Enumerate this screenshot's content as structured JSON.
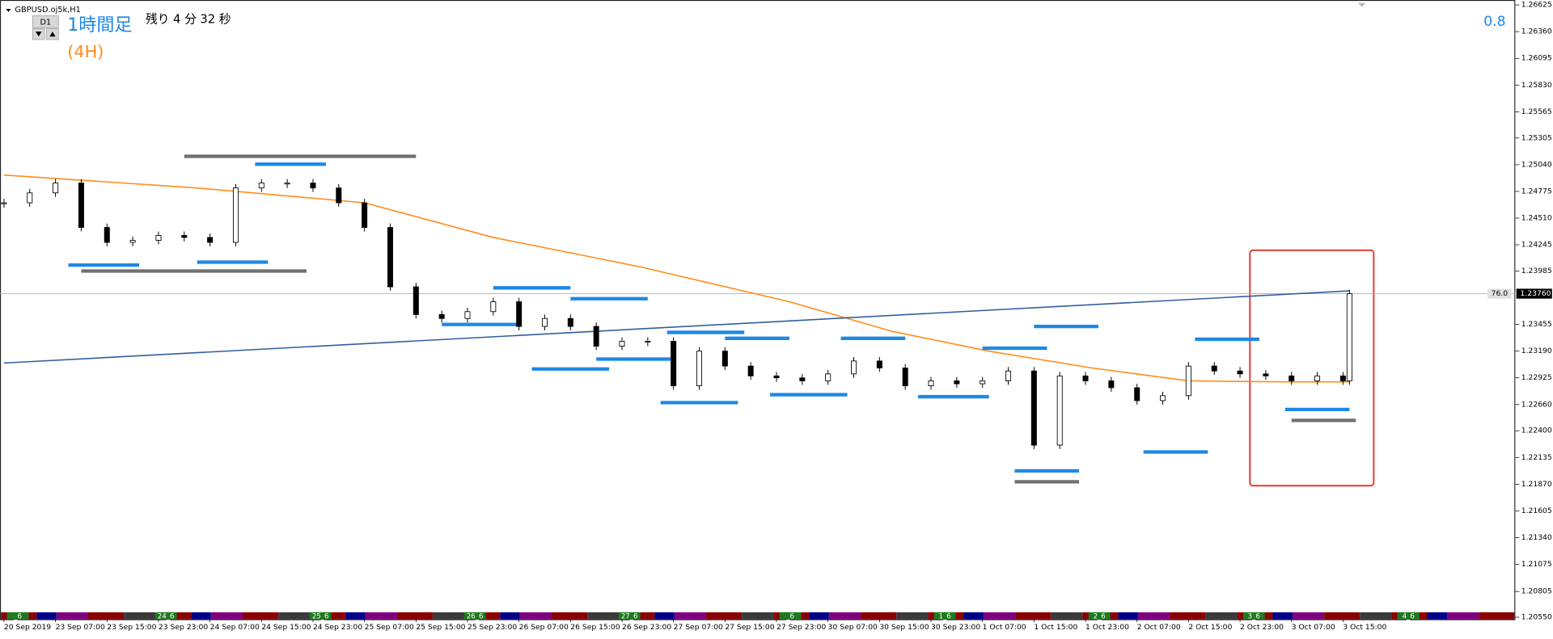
{
  "header": {
    "symbol": "GBPUSD.oj5k,H1",
    "timeframe_button": "D1",
    "timeframe_label": "1時間足",
    "remaining": "残り 4 分 32 秒",
    "higher_timeframe": "(4H)",
    "indicator_value": "0.8"
  },
  "chart_data": {
    "type": "candlestick",
    "x": [
      0,
      4,
      8,
      12,
      16,
      20,
      24,
      28,
      32,
      36,
      40,
      44,
      48,
      52,
      56,
      60,
      64,
      68,
      72,
      76,
      80,
      84,
      88,
      92,
      96,
      100,
      104,
      108,
      112,
      116,
      120,
      124,
      128,
      132,
      136,
      140,
      144,
      148,
      152,
      156,
      160,
      164,
      168,
      172,
      176,
      180,
      184,
      188,
      192,
      196,
      200,
      204,
      208,
      209
    ],
    "values": [
      1.24662,
      1.2476,
      1.24858,
      1.24417,
      1.24269,
      1.24289,
      1.24338,
      1.24318,
      1.24269,
      1.24809,
      1.24858,
      1.24858,
      1.24809,
      1.24662,
      1.24417,
      1.23828,
      1.23553,
      1.23514,
      1.23582,
      1.2368,
      1.23435,
      1.23514,
      1.23435,
      1.23239,
      1.23288,
      1.23288,
      1.22846,
      1.2319,
      1.23042,
      1.22944,
      1.22925,
      1.22895,
      1.22964,
      1.23092,
      1.23023,
      1.22846,
      1.22895,
      1.22866,
      1.22895,
      1.22993,
      1.22257,
      1.22944,
      1.22895,
      1.22827,
      1.22699,
      1.22748,
      1.23042,
      1.22993,
      1.22964,
      1.22944,
      1.22895,
      1.22944,
      1.22895,
      1.2376
    ],
    "up_color": "#ffffff",
    "down_color": "#000000",
    "xlim": [
      0,
      240
    ],
    "ylim": [
      1.2053,
      1.26674
    ],
    "xticks": [
      {
        "value": 0,
        "label": "20 Sep 2019"
      },
      {
        "value": 8,
        "label": "23 Sep 07:00"
      },
      {
        "value": 16,
        "label": "23 Sep 15:00"
      },
      {
        "value": 24,
        "label": "23 Sep 23:00"
      },
      {
        "value": 32,
        "label": "24 Sep 07:00"
      },
      {
        "value": 40,
        "label": "24 Sep 15:00"
      },
      {
        "value": 48,
        "label": "24 Sep 23:00"
      },
      {
        "value": 56,
        "label": "25 Sep 07:00"
      },
      {
        "value": 64,
        "label": "25 Sep 15:00"
      },
      {
        "value": 72,
        "label": "25 Sep 23:00"
      },
      {
        "value": 80,
        "label": "26 Sep 07:00"
      },
      {
        "value": 88,
        "label": "26 Sep 15:00"
      },
      {
        "value": 96,
        "label": "26 Sep 23:00"
      },
      {
        "value": 104,
        "label": "27 Sep 07:00"
      },
      {
        "value": 112,
        "label": "27 Sep 15:00"
      },
      {
        "value": 120,
        "label": "27 Sep 23:00"
      },
      {
        "value": 128,
        "label": "30 Sep 07:00"
      },
      {
        "value": 136,
        "label": "30 Sep 15:00"
      },
      {
        "value": 144,
        "label": "30 Sep 23:00"
      },
      {
        "value": 152,
        "label": "1 Oct 07:00"
      },
      {
        "value": 160,
        "label": "1 Oct 15:00"
      },
      {
        "value": 168,
        "label": "1 Oct 23:00"
      },
      {
        "value": 176,
        "label": "2 Oct 07:00"
      },
      {
        "value": 184,
        "label": "2 Oct 15:00"
      },
      {
        "value": 192,
        "label": "2 Oct 23:00"
      },
      {
        "value": 200,
        "label": "3 Oct 07:00"
      },
      {
        "value": 208,
        "label": "3 Oct 15:00"
      }
    ],
    "yticks": [
      1.26625,
      {
        "value": 1.2636,
        "label": "1.26360"
      },
      1.26095,
      {
        "value": 1.2583,
        "label": "1.25830"
      },
      1.25565,
      1.25305,
      {
        "value": 1.2504,
        "label": "1.25040"
      },
      1.24775,
      {
        "value": 1.2451,
        "label": "1.24510"
      },
      1.24245,
      1.23985,
      1.23455,
      {
        "value": 1.2319,
        "label": "1.23190"
      },
      1.22925,
      {
        "value": 1.2266,
        "label": "1.22660"
      },
      {
        "value": 1.224,
        "label": "1.22400"
      },
      1.22135,
      {
        "value": 1.2187,
        "label": "1.21870"
      },
      1.21605,
      {
        "value": 1.2134,
        "label": "1.21340"
      },
      1.21075,
      1.20805,
      {
        "value": 1.2055,
        "label": "1.20550"
      }
    ],
    "current_price": {
      "value": 1.2376,
      "label": "1.23760"
    },
    "current_price_line_color": "#b0b0b0",
    "indicator_label": "76.0",
    "lines": [
      {
        "color": "#ff8c1a",
        "x": [
          0,
          30,
          56,
          76,
          99,
          122,
          138,
          153,
          169,
          184,
          199,
          209
        ],
        "values": [
          1.24937,
          1.24809,
          1.24662,
          1.24318,
          1.24024,
          1.2368,
          1.23386,
          1.2319,
          1.23023,
          1.22895,
          1.22885,
          1.22885
        ]
      },
      {
        "color": "#2f5f9f",
        "x": [
          0,
          209
        ],
        "values": [
          1.23072,
          1.23788
        ]
      }
    ],
    "levels": [
      {
        "x": [
          28,
          64
        ],
        "value": 1.25123,
        "color": "#707070"
      },
      {
        "x": [
          39,
          50
        ],
        "value": 1.25045,
        "color": "#1e88e5"
      },
      {
        "x": [
          10,
          21
        ],
        "value": 1.24044,
        "color": "#1e88e5"
      },
      {
        "x": [
          12,
          47
        ],
        "value": 1.23985,
        "color": "#707070"
      },
      {
        "x": [
          30,
          41
        ],
        "value": 1.24073,
        "color": "#1e88e5"
      },
      {
        "x": [
          68,
          80
        ],
        "value": 1.23455,
        "color": "#1e88e5"
      },
      {
        "x": [
          76,
          88
        ],
        "value": 1.23818,
        "color": "#1e88e5"
      },
      {
        "x": [
          88,
          100
        ],
        "value": 1.2371,
        "color": "#1e88e5"
      },
      {
        "x": [
          82,
          94
        ],
        "value": 1.23013,
        "color": "#1e88e5"
      },
      {
        "x": [
          92,
          104
        ],
        "value": 1.23111,
        "color": "#1e88e5"
      },
      {
        "x": [
          103,
          115
        ],
        "value": 1.23376,
        "color": "#1e88e5"
      },
      {
        "x": [
          102,
          114
        ],
        "value": 1.22679,
        "color": "#1e88e5"
      },
      {
        "x": [
          112,
          122
        ],
        "value": 1.23317,
        "color": "#1e88e5"
      },
      {
        "x": [
          119,
          131
        ],
        "value": 1.22758,
        "color": "#1e88e5"
      },
      {
        "x": [
          130,
          140
        ],
        "value": 1.23317,
        "color": "#1e88e5"
      },
      {
        "x": [
          142,
          153
        ],
        "value": 1.22738,
        "color": "#1e88e5"
      },
      {
        "x": [
          152,
          162
        ],
        "value": 1.23219,
        "color": "#1e88e5"
      },
      {
        "x": [
          160,
          170
        ],
        "value": 1.23435,
        "color": "#1e88e5"
      },
      {
        "x": [
          157,
          167
        ],
        "value": 1.22002,
        "color": "#1e88e5"
      },
      {
        "x": [
          157,
          167
        ],
        "value": 1.21894,
        "color": "#707070"
      },
      {
        "x": [
          177,
          187
        ],
        "value": 1.22189,
        "color": "#1e88e5"
      },
      {
        "x": [
          185,
          195
        ],
        "value": 1.23308,
        "color": "#1e88e5"
      },
      {
        "x": [
          199,
          209
        ],
        "value": 1.22611,
        "color": "#1e88e5"
      },
      {
        "x": [
          200,
          210
        ],
        "value": 1.22503,
        "color": "#707070"
      }
    ],
    "sessions": [
      "_6",
      "24_6",
      "25_6",
      "26_6",
      "27_6",
      "_6",
      "1_6",
      "2_6",
      "3_6",
      "4_6"
    ]
  }
}
